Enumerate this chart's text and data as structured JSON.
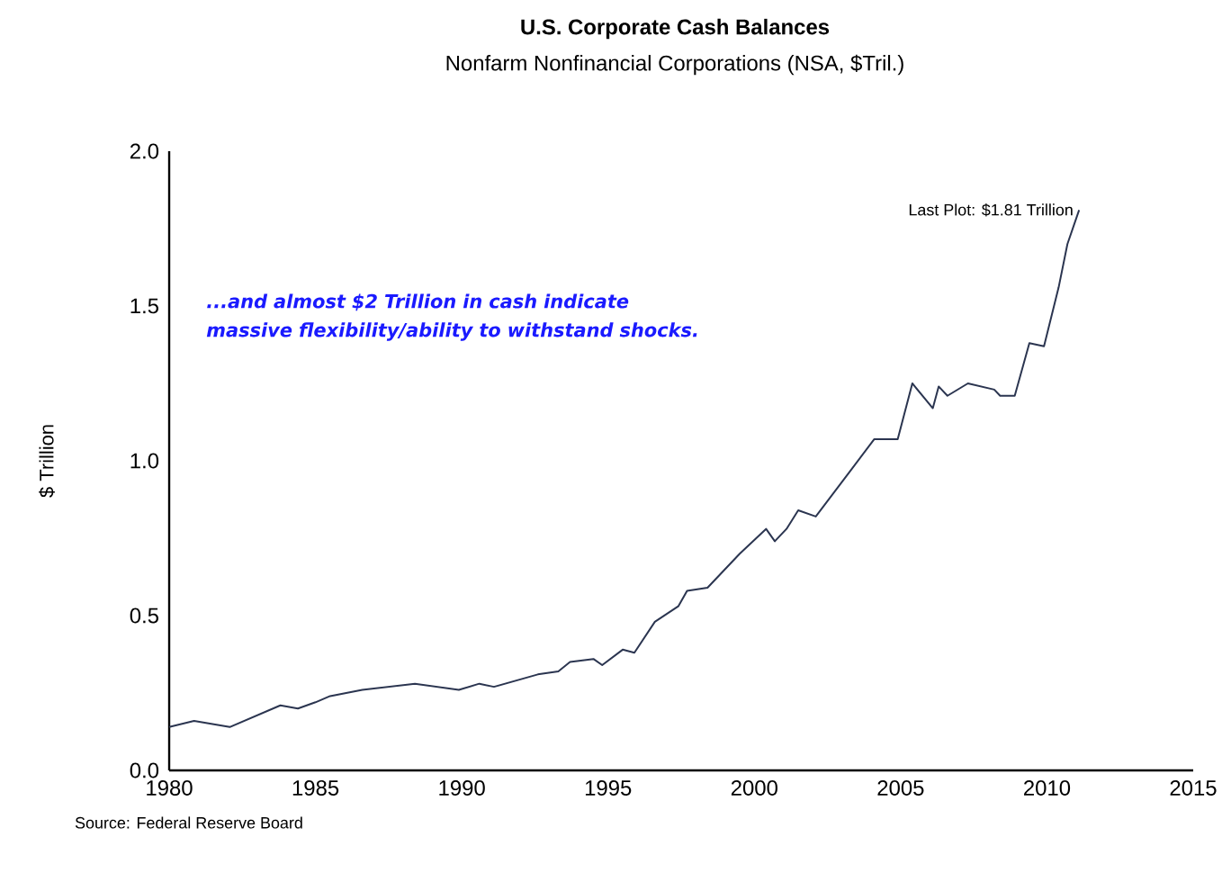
{
  "chart_data": {
    "type": "line",
    "title": "U.S. Corporate Cash Balances",
    "subtitle": "Nonfarm Nonfinancial Corporations (NSA, $Tril.)",
    "ylabel": "$ Trillion",
    "x": [
      1980.0,
      1980.85,
      1982.07,
      1983.8,
      1984.4,
      1985.0,
      1985.5,
      1986.6,
      1988.4,
      1989.9,
      1990.6,
      1991.1,
      1992.6,
      1993.3,
      1993.7,
      1994.5,
      1994.8,
      1995.5,
      1995.9,
      1996.6,
      1997.4,
      1997.7,
      1998.4,
      1999.5,
      2000.4,
      2000.7,
      2001.1,
      2001.5,
      2002.1,
      2003.3,
      2004.1,
      2004.9,
      2005.4,
      2006.1,
      2006.3,
      2006.6,
      2007.3,
      2008.2,
      2008.4,
      2008.9,
      2009.4,
      2009.9,
      2010.4,
      2010.7,
      2011.1
    ],
    "series": [
      {
        "color": "#2b3550",
        "values": [
          0.14,
          0.16,
          0.14,
          0.21,
          0.2,
          0.22,
          0.24,
          0.26,
          0.28,
          0.26,
          0.28,
          0.27,
          0.31,
          0.32,
          0.35,
          0.36,
          0.34,
          0.39,
          0.38,
          0.48,
          0.53,
          0.58,
          0.59,
          0.7,
          0.78,
          0.74,
          0.78,
          0.84,
          0.82,
          0.97,
          1.07,
          1.07,
          1.25,
          1.17,
          1.24,
          1.21,
          1.25,
          1.23,
          1.21,
          1.21,
          1.38,
          1.37,
          1.56,
          1.7,
          1.81
        ]
      }
    ],
    "xlim": [
      1980,
      2015
    ],
    "xticks": [
      1980,
      1985,
      1990,
      1995,
      2000,
      2005,
      2010,
      2015
    ],
    "ylim": [
      0,
      2
    ],
    "yticks": [
      {
        "value": 0,
        "label": "0.0"
      },
      {
        "value": 0.5,
        "label": "0.5"
      },
      {
        "value": 1,
        "label": "1.0"
      },
      {
        "value": 1.5,
        "label": "1.5"
      },
      {
        "value": 2,
        "label": "2.0"
      }
    ],
    "annotations": [
      {
        "text": "Last Plot: $1.81 Trillion",
        "x": 2011.1,
        "y": 1.81
      },
      "...and almost $2 Trillion in cash indicate massive flexibility/ability to withstand shocks.",
      "Source:  Federal Reserve Board"
    ],
    "grid": false,
    "marker": "none",
    "line_style": "solid"
  }
}
